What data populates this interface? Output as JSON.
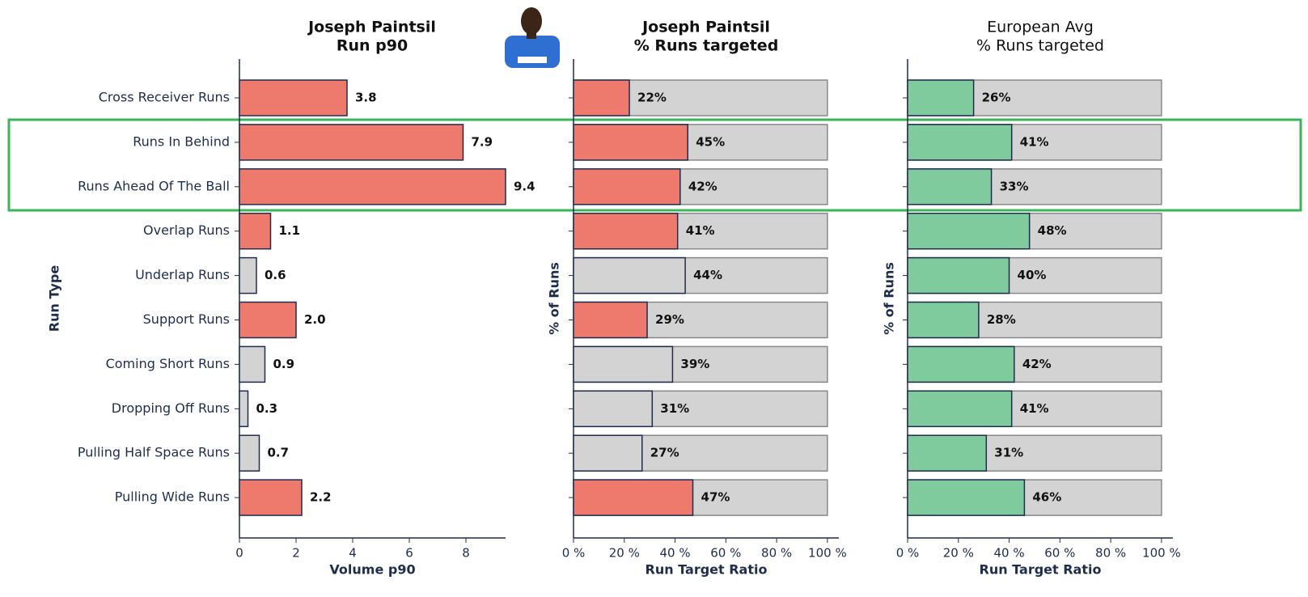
{
  "chart_data": [
    {
      "type": "hbar",
      "title": "Joseph Paintsil",
      "subtitle": "Run p90",
      "title_bold": true,
      "categories": [
        "Cross Receiver Runs",
        "Runs In Behind",
        "Runs Ahead Of The Ball",
        "Overlap Runs",
        "Underlap Runs",
        "Support Runs",
        "Coming Short Runs",
        "Dropping Off Runs",
        "Pulling Half Space Runs",
        "Pulling Wide Runs"
      ],
      "values": [
        3.8,
        7.9,
        9.4,
        1.1,
        0.6,
        2.0,
        0.9,
        0.3,
        0.7,
        2.2
      ],
      "value_labels": [
        "3.8",
        "7.9",
        "9.4",
        "1.1",
        "0.6",
        "2.0",
        "0.9",
        "0.3",
        "0.7",
        "2.2"
      ],
      "colors": [
        "#ee7a6d",
        "#ee7a6d",
        "#ee7a6d",
        "#ee7a6d",
        "#d3d3d3",
        "#ee7a6d",
        "#d3d3d3",
        "#d3d3d3",
        "#d3d3d3",
        "#ee7a6d"
      ],
      "xlabel": "Volume p90",
      "ylabel": "Run Type",
      "xlim": [
        0,
        9.4
      ],
      "xticks": [
        0,
        2,
        4,
        6,
        8
      ]
    },
    {
      "type": "hbar_ratio",
      "title": "Joseph Paintsil",
      "subtitle": "% Runs targeted",
      "title_bold": true,
      "values": [
        22,
        45,
        42,
        41,
        44,
        29,
        39,
        31,
        27,
        47
      ],
      "value_labels": [
        "22%",
        "45%",
        "42%",
        "41%",
        "44%",
        "29%",
        "39%",
        "31%",
        "27%",
        "47%"
      ],
      "colors": [
        "#ee7a6d",
        "#ee7a6d",
        "#ee7a6d",
        "#ee7a6d",
        "#d3d3d3",
        "#ee7a6d",
        "#d3d3d3",
        "#d3d3d3",
        "#d3d3d3",
        "#ee7a6d"
      ],
      "xlabel": "Run Target Ratio",
      "ylabel": "% of Runs",
      "xlim": [
        0,
        104.5
      ],
      "xticks": [
        {
          "value": 0,
          "label": "0 %"
        },
        {
          "value": 20,
          "label": "20 %"
        },
        {
          "value": 40,
          "label": "40 %"
        },
        {
          "value": 60,
          "label": "60 %"
        },
        {
          "value": 80,
          "label": "80 %"
        },
        {
          "value": 100,
          "label": "100 %"
        }
      ]
    },
    {
      "type": "hbar_ratio",
      "title": "European Avg",
      "subtitle": "% Runs targeted",
      "title_bold": false,
      "values": [
        26,
        41,
        33,
        48,
        40,
        28,
        42,
        41,
        31,
        46
      ],
      "value_labels": [
        "26%",
        "41%",
        "33%",
        "48%",
        "40%",
        "28%",
        "42%",
        "41%",
        "31%",
        "46%"
      ],
      "colors": [
        "#7fcb9e",
        "#7fcb9e",
        "#7fcb9e",
        "#7fcb9e",
        "#7fcb9e",
        "#7fcb9e",
        "#7fcb9e",
        "#7fcb9e",
        "#7fcb9e",
        "#7fcb9e"
      ],
      "xlabel": "Run Target Ratio",
      "ylabel": "% of Runs",
      "xlim": [
        0,
        104.5
      ],
      "xticks": [
        {
          "value": 0,
          "label": "0 %"
        },
        {
          "value": 20,
          "label": "20 %"
        },
        {
          "value": 40,
          "label": "40 %"
        },
        {
          "value": 60,
          "label": "60 %"
        },
        {
          "value": 80,
          "label": "80 %"
        },
        {
          "value": 100,
          "label": "100 %"
        }
      ]
    }
  ]
}
